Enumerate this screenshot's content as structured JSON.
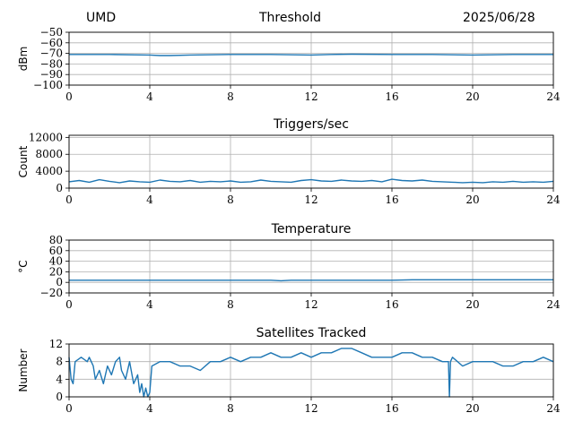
{
  "header": {
    "left": "UMD",
    "center": "Threshold",
    "right": "2025/06/28"
  },
  "colors": {
    "series": "#1f77b4",
    "grid": "#b0b0b0"
  },
  "chart_data": [
    {
      "type": "line",
      "title": "",
      "xlabel": "",
      "ylabel": "dBm",
      "xlim": [
        0,
        24
      ],
      "ylim": [
        -100,
        -50
      ],
      "xticks": [
        0,
        4,
        8,
        12,
        16,
        20,
        24
      ],
      "yticks": [
        -100,
        -90,
        -80,
        -70,
        -60,
        -50
      ],
      "ytick_labels": [
        "−100",
        "−90",
        "−80",
        "−70",
        "−60",
        "−50"
      ],
      "grid": true,
      "x": [
        0,
        2,
        4,
        4.5,
        5,
        6,
        8,
        10,
        12,
        13,
        14,
        16,
        18,
        20,
        22,
        24
      ],
      "y": [
        -71,
        -71,
        -71.5,
        -72,
        -72,
        -71.5,
        -71,
        -71,
        -71.5,
        -71,
        -70.8,
        -71,
        -71,
        -71.5,
        -71,
        -71
      ]
    },
    {
      "type": "line",
      "title": "Triggers/sec",
      "xlabel": "",
      "ylabel": "Count",
      "xlim": [
        0,
        24
      ],
      "ylim": [
        0,
        12500
      ],
      "xticks": [
        0,
        4,
        8,
        12,
        16,
        20,
        24
      ],
      "yticks": [
        0,
        4000,
        8000,
        12000
      ],
      "ytick_labels": [
        "0",
        "4000",
        "8000",
        "12000"
      ],
      "grid": true,
      "x": [
        0,
        0.5,
        1,
        1.5,
        2,
        2.5,
        3,
        3.5,
        4,
        4.5,
        5,
        5.5,
        6,
        6.5,
        7,
        7.5,
        8,
        8.5,
        9,
        9.5,
        10,
        10.5,
        11,
        11.5,
        12,
        12.5,
        13,
        13.5,
        14,
        14.5,
        15,
        15.5,
        16,
        16.5,
        17,
        17.5,
        18,
        18.5,
        19,
        19.5,
        20,
        20.5,
        21,
        21.5,
        22,
        22.5,
        23,
        23.5,
        24
      ],
      "y": [
        1500,
        1800,
        1400,
        2000,
        1600,
        1300,
        1700,
        1500,
        1400,
        1900,
        1600,
        1500,
        1800,
        1400,
        1600,
        1500,
        1700,
        1400,
        1500,
        1900,
        1600,
        1500,
        1400,
        1800,
        2000,
        1700,
        1600,
        1900,
        1700,
        1600,
        1800,
        1500,
        2100,
        1800,
        1700,
        1900,
        1600,
        1500,
        1400,
        1300,
        1400,
        1300,
        1500,
        1400,
        1600,
        1400,
        1500,
        1400,
        1600
      ]
    },
    {
      "type": "line",
      "title": "Temperature",
      "xlabel": "",
      "ylabel": "°C",
      "xlim": [
        0,
        24
      ],
      "ylim": [
        -20,
        80
      ],
      "xticks": [
        0,
        4,
        8,
        12,
        16,
        20,
        24
      ],
      "yticks": [
        -20,
        0,
        20,
        40,
        60,
        80
      ],
      "ytick_labels": [
        "−20",
        "0",
        "20",
        "40",
        "60",
        "80"
      ],
      "grid": true,
      "x": [
        0,
        4,
        8,
        10,
        10.5,
        11,
        12,
        16,
        17,
        20,
        24
      ],
      "y": [
        4,
        4,
        4,
        4,
        3,
        4,
        4,
        4,
        5,
        5,
        5
      ]
    },
    {
      "type": "line",
      "title": "Satellites Tracked",
      "xlabel": "",
      "ylabel": "Number",
      "xlim": [
        0,
        24
      ],
      "ylim": [
        0,
        12
      ],
      "xticks": [
        0,
        4,
        8,
        12,
        16,
        20,
        24
      ],
      "yticks": [
        0,
        4,
        8,
        12
      ],
      "ytick_labels": [
        "0",
        "4",
        "8",
        "12"
      ],
      "grid": true,
      "x": [
        0,
        0.1,
        0.2,
        0.3,
        0.6,
        0.9,
        1.0,
        1.2,
        1.3,
        1.5,
        1.7,
        1.9,
        2.1,
        2.3,
        2.5,
        2.6,
        2.8,
        3.0,
        3.2,
        3.4,
        3.5,
        3.6,
        3.7,
        3.8,
        3.9,
        4.0,
        4.1,
        4.5,
        5.0,
        5.5,
        6.0,
        6.5,
        7.0,
        7.5,
        8.0,
        8.5,
        9.0,
        9.5,
        10.0,
        10.5,
        11.0,
        11.5,
        12.0,
        12.5,
        13.0,
        13.5,
        14.0,
        14.5,
        15.0,
        15.5,
        16.0,
        16.5,
        17.0,
        17.5,
        18.0,
        18.5,
        18.8,
        18.85,
        18.9,
        19.0,
        19.5,
        20.0,
        20.5,
        21.0,
        21.5,
        22.0,
        22.5,
        23.0,
        23.5,
        24.0
      ],
      "y": [
        9,
        4,
        3,
        8,
        9,
        8,
        9,
        7,
        4,
        6,
        3,
        7,
        5,
        8,
        9,
        6,
        4,
        8,
        3,
        5,
        1,
        3,
        0,
        2,
        0,
        1,
        7,
        8,
        8,
        7,
        7,
        6,
        8,
        8,
        9,
        8,
        9,
        9,
        10,
        9,
        9,
        10,
        9,
        10,
        10,
        11,
        11,
        10,
        9,
        9,
        9,
        10,
        10,
        9,
        9,
        8,
        8,
        0,
        8,
        9,
        7,
        8,
        8,
        8,
        7,
        7,
        8,
        8,
        9,
        8
      ]
    }
  ]
}
